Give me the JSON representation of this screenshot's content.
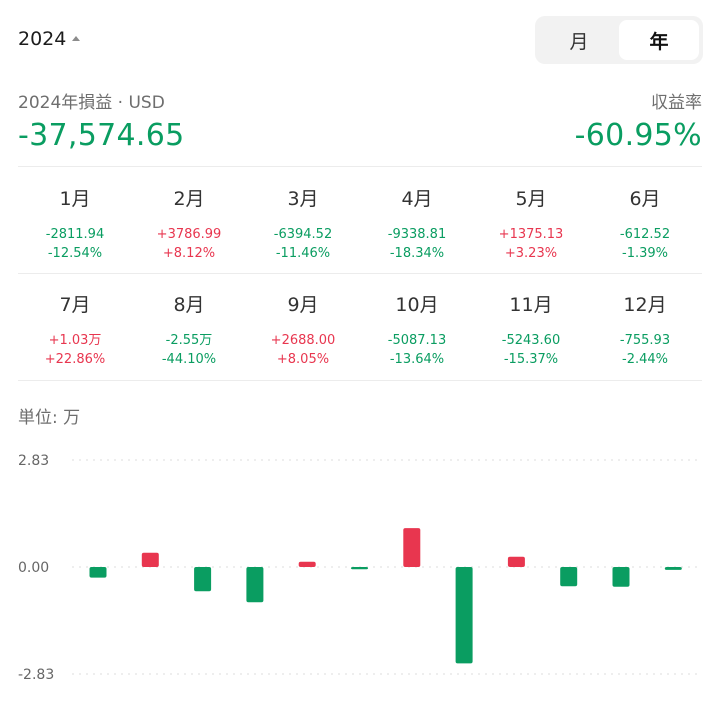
{
  "header": {
    "year": "2024",
    "tabs": [
      {
        "label": "月",
        "active": false
      },
      {
        "label": "年",
        "active": true
      }
    ]
  },
  "summary": {
    "pnl_label": "2024年損益 · USD",
    "pnl_value": "-37,574.65",
    "rate_label": "収益率",
    "rate_value": "-60.95%"
  },
  "colors": {
    "gain": "#e8364f",
    "loss": "#0a9d61"
  },
  "months": [
    {
      "label": "1月",
      "amount": "-2811.94",
      "rate": "-12.54%",
      "dir": "loss"
    },
    {
      "label": "2月",
      "amount": "+3786.99",
      "rate": "+8.12%",
      "dir": "gain"
    },
    {
      "label": "3月",
      "amount": "-6394.52",
      "rate": "-11.46%",
      "dir": "loss"
    },
    {
      "label": "4月",
      "amount": "-9338.81",
      "rate": "-18.34%",
      "dir": "loss"
    },
    {
      "label": "5月",
      "amount": "+1375.13",
      "rate": "+3.23%",
      "dir": "gain"
    },
    {
      "label": "6月",
      "amount": "-612.52",
      "rate": "-1.39%",
      "dir": "loss"
    },
    {
      "label": "7月",
      "amount": "+1.03万",
      "rate": "+22.86%",
      "dir": "gain"
    },
    {
      "label": "8月",
      "amount": "-2.55万",
      "rate": "-44.10%",
      "dir": "loss"
    },
    {
      "label": "9月",
      "amount": "+2688.00",
      "rate": "+8.05%",
      "dir": "gain"
    },
    {
      "label": "10月",
      "amount": "-5087.13",
      "rate": "-13.64%",
      "dir": "loss"
    },
    {
      "label": "11月",
      "amount": "-5243.60",
      "rate": "-15.37%",
      "dir": "loss"
    },
    {
      "label": "12月",
      "amount": "-755.93",
      "rate": "-2.44%",
      "dir": "loss"
    }
  ],
  "unit_label": "単位: 万",
  "chart_data": {
    "type": "bar",
    "categories": [
      "1月",
      "2月",
      "3月",
      "4月",
      "5月",
      "6月",
      "7月",
      "8月",
      "9月",
      "10月",
      "11月",
      "12月"
    ],
    "values": [
      -0.2812,
      0.3787,
      -0.6395,
      -0.9339,
      0.1375,
      -0.0613,
      1.03,
      -2.55,
      0.2688,
      -0.5087,
      -0.5244,
      -0.0756
    ],
    "ylim": [
      -2.83,
      2.83
    ],
    "y_ticks": [
      "2.83",
      "0.00",
      "-2.83"
    ],
    "grid": true,
    "legend": "none"
  }
}
